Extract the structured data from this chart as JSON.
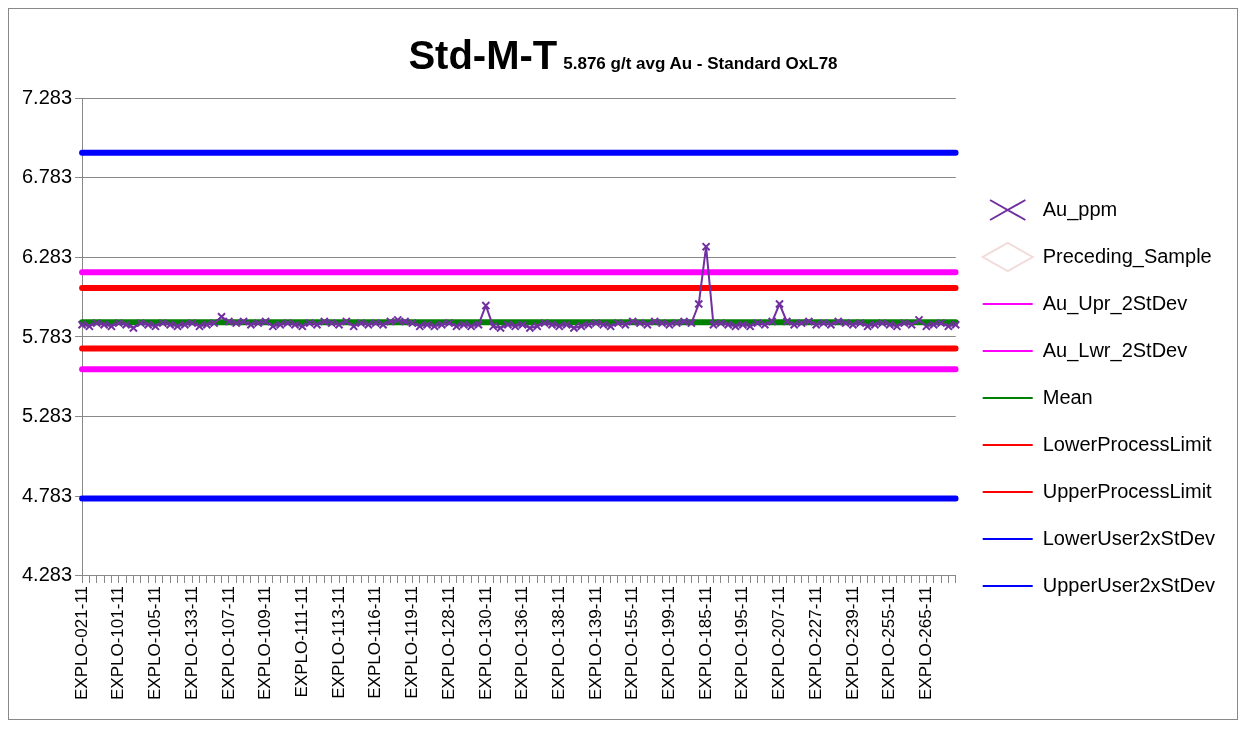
{
  "chart_data": {
    "type": "line",
    "title": "Std-M-T",
    "subtitle": "5.876 g/t avg Au - Standard OxL78",
    "categories": [
      "EXPLO-021-11",
      null,
      null,
      null,
      null,
      "EXPLO-101-11",
      null,
      null,
      null,
      null,
      "EXPLO-105-11",
      null,
      null,
      null,
      null,
      "EXPLO-133-11",
      null,
      null,
      null,
      null,
      "EXPLO-107-11",
      null,
      null,
      null,
      null,
      "EXPLO-109-11",
      null,
      null,
      null,
      null,
      "EXPLO-111-11",
      null,
      null,
      null,
      null,
      "EXPLO-113-11",
      null,
      null,
      null,
      null,
      "EXPLO-116-11",
      null,
      null,
      null,
      null,
      "EXPLO-119-11",
      null,
      null,
      null,
      null,
      "EXPLO-128-11",
      null,
      null,
      null,
      null,
      "EXPLO-130-11",
      null,
      null,
      null,
      null,
      "EXPLO-136-11",
      null,
      null,
      null,
      null,
      "EXPLO-138-11",
      null,
      null,
      null,
      null,
      "EXPLO-139-11",
      null,
      null,
      null,
      null,
      "EXPLO-155-11",
      null,
      null,
      null,
      null,
      "EXPLO-199-11",
      null,
      null,
      null,
      null,
      "EXPLO-185-11",
      null,
      null,
      null,
      null,
      "EXPLO-195-11",
      null,
      null,
      null,
      null,
      "EXPLO-207-11",
      null,
      null,
      null,
      null,
      "EXPLO-227-11",
      null,
      null,
      null,
      null,
      "EXPLO-239-11",
      null,
      null,
      null,
      null,
      "EXPLO-255-11",
      null,
      null,
      null,
      null,
      "EXPLO-265-11",
      null,
      null,
      null,
      null
    ],
    "series": [
      {
        "name": "Au_ppm",
        "color": "#7030a0",
        "marker": "cross",
        "values": [
          5.86,
          5.85,
          5.87,
          5.86,
          5.85,
          5.87,
          5.86,
          5.84,
          5.87,
          5.86,
          5.85,
          5.87,
          5.86,
          5.85,
          5.86,
          5.87,
          5.85,
          5.86,
          5.87,
          5.91,
          5.88,
          5.87,
          5.88,
          5.86,
          5.87,
          5.88,
          5.85,
          5.86,
          5.87,
          5.86,
          5.85,
          5.87,
          5.86,
          5.88,
          5.87,
          5.86,
          5.88,
          5.85,
          5.87,
          5.86,
          5.87,
          5.86,
          5.88,
          5.89,
          5.88,
          5.87,
          5.85,
          5.86,
          5.85,
          5.86,
          5.87,
          5.85,
          5.86,
          5.85,
          5.86,
          5.98,
          5.85,
          5.84,
          5.86,
          5.85,
          5.86,
          5.84,
          5.85,
          5.87,
          5.86,
          5.85,
          5.86,
          5.84,
          5.85,
          5.86,
          5.87,
          5.86,
          5.85,
          5.87,
          5.86,
          5.88,
          5.87,
          5.86,
          5.88,
          5.87,
          5.86,
          5.87,
          5.88,
          5.87,
          5.99,
          6.35,
          5.86,
          5.87,
          5.86,
          5.85,
          5.86,
          5.85,
          5.87,
          5.86,
          5.88,
          5.99,
          5.88,
          5.86,
          5.87,
          5.88,
          5.86,
          5.87,
          5.86,
          5.88,
          5.87,
          5.86,
          5.87,
          5.85,
          5.86,
          5.87,
          5.86,
          5.85,
          5.87,
          5.86,
          5.89,
          5.85,
          5.86,
          5.87,
          5.85,
          5.86
        ]
      },
      {
        "name": "Preceding_Sample",
        "color": "#f2dcdb",
        "marker": "diamond",
        "values": [
          null,
          null,
          null,
          null,
          null,
          null,
          null,
          null,
          null,
          null,
          null,
          null,
          null,
          null,
          null,
          null,
          null,
          null,
          null,
          null,
          null,
          null,
          null,
          null,
          null,
          null,
          null,
          null,
          null,
          null,
          null,
          null,
          null,
          null,
          null,
          null,
          null,
          null,
          null,
          null,
          null,
          null,
          null,
          null,
          null,
          null,
          null,
          null,
          null,
          null,
          null,
          null,
          null,
          null,
          null,
          null,
          null,
          null,
          null,
          null,
          null,
          null,
          null,
          null,
          null,
          null,
          null,
          null,
          null,
          null,
          null,
          null,
          null,
          null,
          null,
          null,
          null,
          null,
          null,
          null,
          null,
          null,
          null,
          null,
          null,
          null,
          null,
          null,
          null,
          null,
          null,
          null,
          null,
          null,
          null,
          null,
          null,
          null,
          null,
          null,
          null,
          null,
          null,
          null,
          null,
          null,
          null,
          null,
          null,
          null,
          null,
          null,
          null,
          null,
          null,
          null,
          null,
          null,
          null,
          null
        ]
      },
      {
        "name": "Au_Upr_2StDev",
        "color": "#ff00ff",
        "marker": "none",
        "values": [
          6.19,
          6.19,
          6.19,
          6.19,
          6.19,
          6.19,
          6.19,
          6.19,
          6.19,
          6.19,
          6.19,
          6.19,
          6.19,
          6.19,
          6.19,
          6.19,
          6.19,
          6.19,
          6.19,
          6.19,
          6.19,
          6.19,
          6.19,
          6.19,
          6.19,
          6.19,
          6.19,
          6.19,
          6.19,
          6.19,
          6.19,
          6.19,
          6.19,
          6.19,
          6.19,
          6.19,
          6.19,
          6.19,
          6.19,
          6.19,
          6.19,
          6.19,
          6.19,
          6.19,
          6.19,
          6.19,
          6.19,
          6.19,
          6.19,
          6.19,
          6.19,
          6.19,
          6.19,
          6.19,
          6.19,
          6.19,
          6.19,
          6.19,
          6.19,
          6.19,
          6.19,
          6.19,
          6.19,
          6.19,
          6.19,
          6.19,
          6.19,
          6.19,
          6.19,
          6.19,
          6.19,
          6.19,
          6.19,
          6.19,
          6.19,
          6.19,
          6.19,
          6.19,
          6.19,
          6.19,
          6.19,
          6.19,
          6.19,
          6.19,
          6.19,
          6.19,
          6.19,
          6.19,
          6.19,
          6.19,
          6.19,
          6.19,
          6.19,
          6.19,
          6.19,
          6.19,
          6.19,
          6.19,
          6.19,
          6.19,
          6.19,
          6.19,
          6.19,
          6.19,
          6.19,
          6.19,
          6.19,
          6.19,
          6.19,
          6.19,
          6.19,
          6.19,
          6.19,
          6.19,
          6.19,
          6.19,
          6.19,
          6.19,
          6.19,
          6.19
        ]
      },
      {
        "name": "Au_Lwr_2StDev",
        "color": "#ff00ff",
        "marker": "none",
        "values": [
          5.58,
          5.58,
          5.58,
          5.58,
          5.58,
          5.58,
          5.58,
          5.58,
          5.58,
          5.58,
          5.58,
          5.58,
          5.58,
          5.58,
          5.58,
          5.58,
          5.58,
          5.58,
          5.58,
          5.58,
          5.58,
          5.58,
          5.58,
          5.58,
          5.58,
          5.58,
          5.58,
          5.58,
          5.58,
          5.58,
          5.58,
          5.58,
          5.58,
          5.58,
          5.58,
          5.58,
          5.58,
          5.58,
          5.58,
          5.58,
          5.58,
          5.58,
          5.58,
          5.58,
          5.58,
          5.58,
          5.58,
          5.58,
          5.58,
          5.58,
          5.58,
          5.58,
          5.58,
          5.58,
          5.58,
          5.58,
          5.58,
          5.58,
          5.58,
          5.58,
          5.58,
          5.58,
          5.58,
          5.58,
          5.58,
          5.58,
          5.58,
          5.58,
          5.58,
          5.58,
          5.58,
          5.58,
          5.58,
          5.58,
          5.58,
          5.58,
          5.58,
          5.58,
          5.58,
          5.58,
          5.58,
          5.58,
          5.58,
          5.58,
          5.58,
          5.58,
          5.58,
          5.58,
          5.58,
          5.58,
          5.58,
          5.58,
          5.58,
          5.58,
          5.58,
          5.58,
          5.58,
          5.58,
          5.58,
          5.58,
          5.58,
          5.58,
          5.58,
          5.58,
          5.58,
          5.58,
          5.58,
          5.58,
          5.58,
          5.58,
          5.58,
          5.58,
          5.58,
          5.58,
          5.58,
          5.58,
          5.58,
          5.58,
          5.58,
          5.58
        ]
      },
      {
        "name": "Mean",
        "color": "#008000",
        "marker": "none",
        "values": [
          5.876,
          5.876,
          5.876,
          5.876,
          5.876,
          5.876,
          5.876,
          5.876,
          5.876,
          5.876,
          5.876,
          5.876,
          5.876,
          5.876,
          5.876,
          5.876,
          5.876,
          5.876,
          5.876,
          5.876,
          5.876,
          5.876,
          5.876,
          5.876,
          5.876,
          5.876,
          5.876,
          5.876,
          5.876,
          5.876,
          5.876,
          5.876,
          5.876,
          5.876,
          5.876,
          5.876,
          5.876,
          5.876,
          5.876,
          5.876,
          5.876,
          5.876,
          5.876,
          5.876,
          5.876,
          5.876,
          5.876,
          5.876,
          5.876,
          5.876,
          5.876,
          5.876,
          5.876,
          5.876,
          5.876,
          5.876,
          5.876,
          5.876,
          5.876,
          5.876,
          5.876,
          5.876,
          5.876,
          5.876,
          5.876,
          5.876,
          5.876,
          5.876,
          5.876,
          5.876,
          5.876,
          5.876,
          5.876,
          5.876,
          5.876,
          5.876,
          5.876,
          5.876,
          5.876,
          5.876,
          5.876,
          5.876,
          5.876,
          5.876,
          5.876,
          5.876,
          5.876,
          5.876,
          5.876,
          5.876,
          5.876,
          5.876,
          5.876,
          5.876,
          5.876,
          5.876,
          5.876,
          5.876,
          5.876,
          5.876,
          5.876,
          5.876,
          5.876,
          5.876,
          5.876,
          5.876,
          5.876,
          5.876,
          5.876,
          5.876,
          5.876,
          5.876,
          5.876,
          5.876,
          5.876,
          5.876,
          5.876,
          5.876,
          5.876,
          5.876
        ]
      },
      {
        "name": "LowerProcessLimit",
        "color": "#ff0000",
        "marker": "none",
        "values": [
          5.71,
          5.71,
          5.71,
          5.71,
          5.71,
          5.71,
          5.71,
          5.71,
          5.71,
          5.71,
          5.71,
          5.71,
          5.71,
          5.71,
          5.71,
          5.71,
          5.71,
          5.71,
          5.71,
          5.71,
          5.71,
          5.71,
          5.71,
          5.71,
          5.71,
          5.71,
          5.71,
          5.71,
          5.71,
          5.71,
          5.71,
          5.71,
          5.71,
          5.71,
          5.71,
          5.71,
          5.71,
          5.71,
          5.71,
          5.71,
          5.71,
          5.71,
          5.71,
          5.71,
          5.71,
          5.71,
          5.71,
          5.71,
          5.71,
          5.71,
          5.71,
          5.71,
          5.71,
          5.71,
          5.71,
          5.71,
          5.71,
          5.71,
          5.71,
          5.71,
          5.71,
          5.71,
          5.71,
          5.71,
          5.71,
          5.71,
          5.71,
          5.71,
          5.71,
          5.71,
          5.71,
          5.71,
          5.71,
          5.71,
          5.71,
          5.71,
          5.71,
          5.71,
          5.71,
          5.71,
          5.71,
          5.71,
          5.71,
          5.71,
          5.71,
          5.71,
          5.71,
          5.71,
          5.71,
          5.71,
          5.71,
          5.71,
          5.71,
          5.71,
          5.71,
          5.71,
          5.71,
          5.71,
          5.71,
          5.71,
          5.71,
          5.71,
          5.71,
          5.71,
          5.71,
          5.71,
          5.71,
          5.71,
          5.71,
          5.71,
          5.71,
          5.71,
          5.71,
          5.71,
          5.71,
          5.71,
          5.71,
          5.71,
          5.71,
          5.71
        ]
      },
      {
        "name": "UpperProcessLimit",
        "color": "#ff0000",
        "marker": "none",
        "values": [
          6.09,
          6.09,
          6.09,
          6.09,
          6.09,
          6.09,
          6.09,
          6.09,
          6.09,
          6.09,
          6.09,
          6.09,
          6.09,
          6.09,
          6.09,
          6.09,
          6.09,
          6.09,
          6.09,
          6.09,
          6.09,
          6.09,
          6.09,
          6.09,
          6.09,
          6.09,
          6.09,
          6.09,
          6.09,
          6.09,
          6.09,
          6.09,
          6.09,
          6.09,
          6.09,
          6.09,
          6.09,
          6.09,
          6.09,
          6.09,
          6.09,
          6.09,
          6.09,
          6.09,
          6.09,
          6.09,
          6.09,
          6.09,
          6.09,
          6.09,
          6.09,
          6.09,
          6.09,
          6.09,
          6.09,
          6.09,
          6.09,
          6.09,
          6.09,
          6.09,
          6.09,
          6.09,
          6.09,
          6.09,
          6.09,
          6.09,
          6.09,
          6.09,
          6.09,
          6.09,
          6.09,
          6.09,
          6.09,
          6.09,
          6.09,
          6.09,
          6.09,
          6.09,
          6.09,
          6.09,
          6.09,
          6.09,
          6.09,
          6.09,
          6.09,
          6.09,
          6.09,
          6.09,
          6.09,
          6.09,
          6.09,
          6.09,
          6.09,
          6.09,
          6.09,
          6.09,
          6.09,
          6.09,
          6.09,
          6.09,
          6.09,
          6.09,
          6.09,
          6.09,
          6.09,
          6.09,
          6.09,
          6.09,
          6.09,
          6.09,
          6.09,
          6.09,
          6.09,
          6.09,
          6.09,
          6.09,
          6.09,
          6.09,
          6.09,
          6.09
        ]
      },
      {
        "name": "LowerUser2xStDev",
        "color": "#0000ff",
        "marker": "none",
        "values": [
          4.77,
          4.77,
          4.77,
          4.77,
          4.77,
          4.77,
          4.77,
          4.77,
          4.77,
          4.77,
          4.77,
          4.77,
          4.77,
          4.77,
          4.77,
          4.77,
          4.77,
          4.77,
          4.77,
          4.77,
          4.77,
          4.77,
          4.77,
          4.77,
          4.77,
          4.77,
          4.77,
          4.77,
          4.77,
          4.77,
          4.77,
          4.77,
          4.77,
          4.77,
          4.77,
          4.77,
          4.77,
          4.77,
          4.77,
          4.77,
          4.77,
          4.77,
          4.77,
          4.77,
          4.77,
          4.77,
          4.77,
          4.77,
          4.77,
          4.77,
          4.77,
          4.77,
          4.77,
          4.77,
          4.77,
          4.77,
          4.77,
          4.77,
          4.77,
          4.77,
          4.77,
          4.77,
          4.77,
          4.77,
          4.77,
          4.77,
          4.77,
          4.77,
          4.77,
          4.77,
          4.77,
          4.77,
          4.77,
          4.77,
          4.77,
          4.77,
          4.77,
          4.77,
          4.77,
          4.77,
          4.77,
          4.77,
          4.77,
          4.77,
          4.77,
          4.77,
          4.77,
          4.77,
          4.77,
          4.77,
          4.77,
          4.77,
          4.77,
          4.77,
          4.77,
          4.77,
          4.77,
          4.77,
          4.77,
          4.77,
          4.77,
          4.77,
          4.77,
          4.77,
          4.77,
          4.77,
          4.77,
          4.77,
          4.77,
          4.77,
          4.77,
          4.77,
          4.77,
          4.77,
          4.77,
          4.77,
          4.77,
          4.77,
          4.77,
          4.77
        ]
      },
      {
        "name": "UpperUser2xStDev",
        "color": "#0000ff",
        "marker": "none",
        "values": [
          6.94,
          6.94,
          6.94,
          6.94,
          6.94,
          6.94,
          6.94,
          6.94,
          6.94,
          6.94,
          6.94,
          6.94,
          6.94,
          6.94,
          6.94,
          6.94,
          6.94,
          6.94,
          6.94,
          6.94,
          6.94,
          6.94,
          6.94,
          6.94,
          6.94,
          6.94,
          6.94,
          6.94,
          6.94,
          6.94,
          6.94,
          6.94,
          6.94,
          6.94,
          6.94,
          6.94,
          6.94,
          6.94,
          6.94,
          6.94,
          6.94,
          6.94,
          6.94,
          6.94,
          6.94,
          6.94,
          6.94,
          6.94,
          6.94,
          6.94,
          6.94,
          6.94,
          6.94,
          6.94,
          6.94,
          6.94,
          6.94,
          6.94,
          6.94,
          6.94,
          6.94,
          6.94,
          6.94,
          6.94,
          6.94,
          6.94,
          6.94,
          6.94,
          6.94,
          6.94,
          6.94,
          6.94,
          6.94,
          6.94,
          6.94,
          6.94,
          6.94,
          6.94,
          6.94,
          6.94,
          6.94,
          6.94,
          6.94,
          6.94,
          6.94,
          6.94,
          6.94,
          6.94,
          6.94,
          6.94,
          6.94,
          6.94,
          6.94,
          6.94,
          6.94,
          6.94,
          6.94,
          6.94,
          6.94,
          6.94,
          6.94,
          6.94,
          6.94,
          6.94,
          6.94,
          6.94,
          6.94,
          6.94,
          6.94,
          6.94,
          6.94,
          6.94,
          6.94,
          6.94,
          6.94,
          6.94,
          6.94,
          6.94,
          6.94,
          6.94
        ]
      }
    ],
    "ylim": [
      4.283,
      7.283
    ],
    "yticks": [
      4.283,
      4.783,
      5.283,
      5.783,
      6.283,
      6.783,
      7.283
    ],
    "grid": "y",
    "legend": "right",
    "line_style": "solid"
  }
}
